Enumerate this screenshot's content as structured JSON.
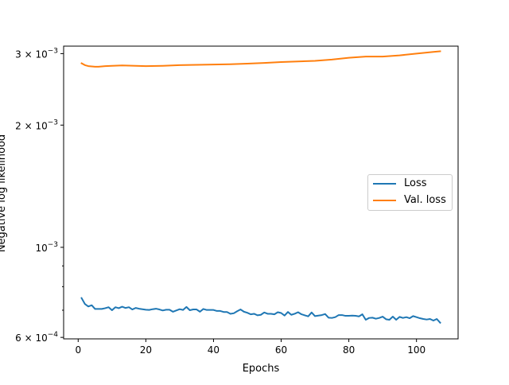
{
  "chart_data": {
    "type": "line",
    "title": "",
    "xlabel": "Epochs",
    "ylabel": "Negative log likelihood",
    "yscale": "log",
    "xlim": [
      -4.3,
      112.3
    ],
    "ylim": [
      0.000595,
      0.00313
    ],
    "x_ticks": [
      0,
      20,
      40,
      60,
      80,
      100
    ],
    "y_ticks": [
      {
        "value": 0.0006,
        "mantissa": "6",
        "exp": "−4"
      },
      {
        "value": 0.001,
        "mantissa": "",
        "exp": "−3"
      },
      {
        "value": 0.002,
        "mantissa": "2",
        "exp": "−3"
      },
      {
        "value": 0.003,
        "mantissa": "3",
        "exp": "−3"
      }
    ],
    "y_minor_ticks": [
      0.0007,
      0.0008,
      0.0009
    ],
    "legend": {
      "position": "center-right"
    },
    "series": [
      {
        "name": "Loss",
        "color": "#1f77b4",
        "points": [
          [
            1,
            0.00075
          ],
          [
            2,
            0.000725
          ],
          [
            3,
            0.000715
          ],
          [
            4,
            0.00072
          ],
          [
            5,
            0.000705
          ],
          [
            6,
            0.000705
          ],
          [
            7,
            0.000705
          ],
          [
            8,
            0.000708
          ],
          [
            9,
            0.000712
          ],
          [
            10,
            0.0007
          ],
          [
            11,
            0.000712
          ],
          [
            12,
            0.000708
          ],
          [
            13,
            0.000714
          ],
          [
            14,
            0.000709
          ],
          [
            15,
            0.000712
          ],
          [
            16,
            0.000703
          ],
          [
            17,
            0.000709
          ],
          [
            18,
            0.000706
          ],
          [
            19,
            0.000704
          ],
          [
            20,
            0.000702
          ],
          [
            21,
            0.000701
          ],
          [
            22,
            0.000704
          ],
          [
            23,
            0.000706
          ],
          [
            24,
            0.000703
          ],
          [
            25,
            0.000699
          ],
          [
            26,
            0.000702
          ],
          [
            27,
            0.000702
          ],
          [
            28,
            0.000694
          ],
          [
            29,
            0.000699
          ],
          [
            30,
            0.000704
          ],
          [
            31,
            0.000701
          ],
          [
            32,
            0.000713
          ],
          [
            33,
            0.0007
          ],
          [
            34,
            0.000703
          ],
          [
            35,
            0.000703
          ],
          [
            36,
            0.000694
          ],
          [
            37,
            0.000705
          ],
          [
            38,
            0.000701
          ],
          [
            39,
            0.000701
          ],
          [
            40,
            0.000701
          ],
          [
            41,
            0.000697
          ],
          [
            42,
            0.000697
          ],
          [
            43,
            0.000693
          ],
          [
            44,
            0.000693
          ],
          [
            45,
            0.000686
          ],
          [
            46,
            0.000688
          ],
          [
            47,
            0.000696
          ],
          [
            48,
            0.000703
          ],
          [
            49,
            0.000694
          ],
          [
            50,
            0.00069
          ],
          [
            51,
            0.000684
          ],
          [
            52,
            0.000686
          ],
          [
            53,
            0.00068
          ],
          [
            54,
            0.000682
          ],
          [
            55,
            0.000691
          ],
          [
            56,
            0.000686
          ],
          [
            57,
            0.000686
          ],
          [
            58,
            0.000684
          ],
          [
            59,
            0.000692
          ],
          [
            60,
            0.000689
          ],
          [
            61,
            0.000679
          ],
          [
            62,
            0.000693
          ],
          [
            63,
            0.000682
          ],
          [
            64,
            0.000686
          ],
          [
            65,
            0.000692
          ],
          [
            66,
            0.000684
          ],
          [
            67,
            0.00068
          ],
          [
            68,
            0.000676
          ],
          [
            69,
            0.000691
          ],
          [
            70,
            0.000677
          ],
          [
            71,
            0.000679
          ],
          [
            72,
            0.000681
          ],
          [
            73,
            0.000685
          ],
          [
            74,
            0.000671
          ],
          [
            75,
            0.00067
          ],
          [
            76,
            0.000673
          ],
          [
            77,
            0.000681
          ],
          [
            78,
            0.000681
          ],
          [
            79,
            0.000678
          ],
          [
            80,
            0.000678
          ],
          [
            81,
            0.000679
          ],
          [
            82,
            0.000678
          ],
          [
            83,
            0.000676
          ],
          [
            84,
            0.000684
          ],
          [
            85,
            0.000663
          ],
          [
            86,
            0.00067
          ],
          [
            87,
            0.000671
          ],
          [
            88,
            0.000667
          ],
          [
            89,
            0.00067
          ],
          [
            90,
            0.000675
          ],
          [
            91,
            0.000665
          ],
          [
            92,
            0.000663
          ],
          [
            93,
            0.000675
          ],
          [
            94,
            0.000663
          ],
          [
            95,
            0.000674
          ],
          [
            96,
            0.00067
          ],
          [
            97,
            0.000673
          ],
          [
            98,
            0.000669
          ],
          [
            99,
            0.000677
          ],
          [
            100,
            0.000673
          ],
          [
            101,
            0.000669
          ],
          [
            102,
            0.000666
          ],
          [
            103,
            0.000664
          ],
          [
            104,
            0.000666
          ],
          [
            105,
            0.00066
          ],
          [
            106,
            0.000666
          ],
          [
            107,
            0.000652
          ]
        ]
      },
      {
        "name": "Val. loss",
        "color": "#ff7f0e",
        "points": [
          [
            1,
            0.00284
          ],
          [
            2,
            0.00281
          ],
          [
            3,
            0.002795
          ],
          [
            4,
            0.00279
          ],
          [
            5,
            0.002785
          ],
          [
            6,
            0.002785
          ],
          [
            7,
            0.00279
          ],
          [
            8,
            0.002795
          ],
          [
            10,
            0.0028
          ],
          [
            13,
            0.002805
          ],
          [
            17,
            0.0028
          ],
          [
            20,
            0.002795
          ],
          [
            25,
            0.0028
          ],
          [
            30,
            0.00281
          ],
          [
            35,
            0.002815
          ],
          [
            40,
            0.00282
          ],
          [
            45,
            0.002825
          ],
          [
            50,
            0.002835
          ],
          [
            55,
            0.002845
          ],
          [
            60,
            0.00286
          ],
          [
            65,
            0.00287
          ],
          [
            70,
            0.00288
          ],
          [
            75,
            0.0029
          ],
          [
            80,
            0.00293
          ],
          [
            85,
            0.00295
          ],
          [
            90,
            0.00295
          ],
          [
            95,
            0.00297
          ],
          [
            100,
            0.003
          ],
          [
            105,
            0.00303
          ],
          [
            107,
            0.00304
          ]
        ]
      }
    ]
  }
}
